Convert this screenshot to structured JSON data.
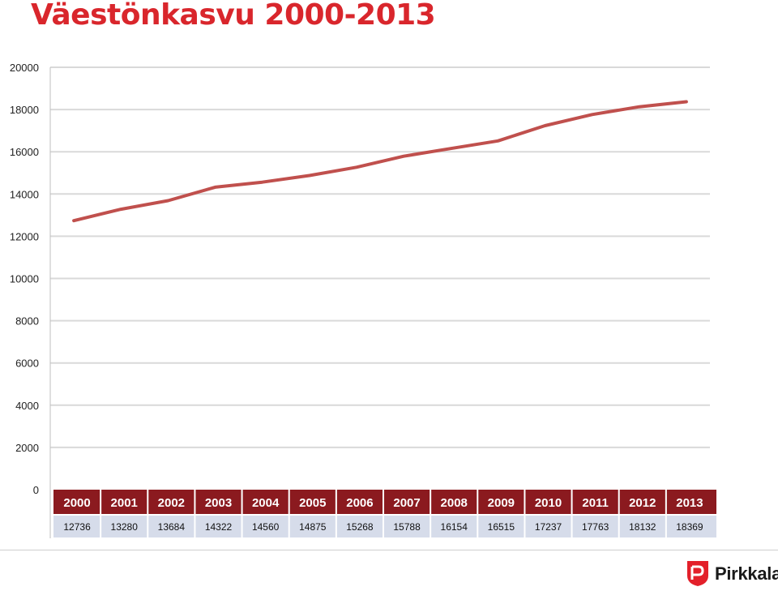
{
  "page": {
    "title": "Väestönkasvu 2000-2013",
    "logo_text": "Pirkkala"
  },
  "colors": {
    "title": "#d9262c",
    "line": "#c0504d",
    "table_header": "#8b1a1f",
    "table_row": "#d6dcea",
    "grid": "#d9d9d9",
    "logo_red": "#e3202a"
  },
  "chart_data": {
    "type": "line",
    "title": "Väestönkasvu 2000-2013",
    "xlabel": "",
    "ylabel": "",
    "categories": [
      "2000",
      "2001",
      "2002",
      "2003",
      "2004",
      "2005",
      "2006",
      "2007",
      "2008",
      "2009",
      "2010",
      "2011",
      "2012",
      "2013"
    ],
    "series": [
      {
        "values": [
          12736,
          13280,
          13684,
          14322,
          14560,
          14875,
          15268,
          15788,
          16154,
          16515,
          17237,
          17763,
          18132,
          18369
        ]
      }
    ],
    "value_labels": [
      "12736",
      "13280",
      "13684",
      "14322",
      "14560",
      "14875",
      "15268",
      "15788",
      "16154",
      "16515",
      "17237",
      "17763",
      "18132",
      "18369"
    ],
    "ylim": [
      0,
      20000
    ],
    "yticks": [
      "0",
      "2000",
      "4000",
      "6000",
      "8000",
      "10000",
      "12000",
      "14000",
      "16000",
      "18000",
      "20000"
    ],
    "grid": true,
    "legend": "none",
    "data_table": true
  }
}
